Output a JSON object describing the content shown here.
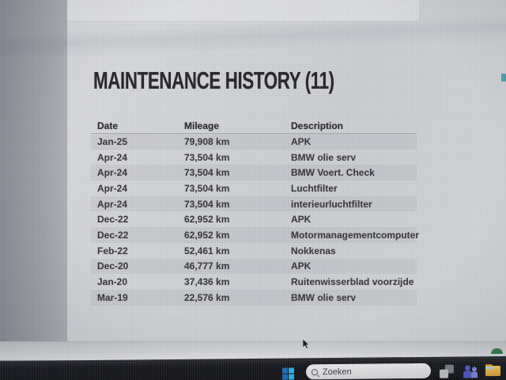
{
  "page": {
    "title": "MAINTENANCE HISTORY (11)"
  },
  "table": {
    "columns": [
      "Date",
      "Mileage",
      "Description"
    ],
    "rows": [
      {
        "date": "Jan-25",
        "mileage": "79,908 km",
        "description": "APK"
      },
      {
        "date": "Apr-24",
        "mileage": "73,504 km",
        "description": "BMW olie serv"
      },
      {
        "date": "Apr-24",
        "mileage": "73,504 km",
        "description": "BMW Voert. Check"
      },
      {
        "date": "Apr-24",
        "mileage": "73,504 km",
        "description": "Luchtfilter"
      },
      {
        "date": "Apr-24",
        "mileage": "73,504 km",
        "description": "interieurluchtfilter"
      },
      {
        "date": "Dec-22",
        "mileage": "62,952 km",
        "description": "APK"
      },
      {
        "date": "Dec-22",
        "mileage": "62,952 km",
        "description": "Motormanagementcomputer"
      },
      {
        "date": "Feb-22",
        "mileage": "52,461 km",
        "description": "Nokkenas"
      },
      {
        "date": "Dec-20",
        "mileage": "46,777 km",
        "description": "APK"
      },
      {
        "date": "Jan-20",
        "mileage": "37,436 km",
        "description": "Ruitenwisserblad voorzijde"
      },
      {
        "date": "Mar-19",
        "mileage": "22,576 km",
        "description": "BMW olie serv"
      }
    ]
  },
  "taskbar": {
    "search_placeholder": "Zoeken",
    "icons": [
      "windows-start-icon",
      "search-icon",
      "task-view-icon",
      "teams-icon",
      "file-explorer-icon"
    ]
  },
  "colors": {
    "taskbar_bg": "#141519",
    "content_bg": "#d2d4d7",
    "title_text": "#232327",
    "scrollbar_accent": "#4a9fa8",
    "windows_blue_dark": "#1a6fbe",
    "windows_blue_light": "#2fb0e3",
    "teams_blue": "#4e58c8",
    "folder_yellow": "#f1b947",
    "green_decoration": "#2c7a46"
  }
}
